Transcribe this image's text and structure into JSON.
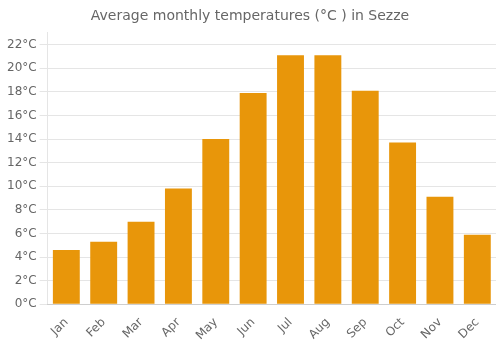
{
  "chart_data": {
    "type": "bar",
    "title": "Average monthly temperatures (°C ) in Sezze",
    "categories": [
      "Jan",
      "Feb",
      "Mar",
      "Apr",
      "May",
      "Jun",
      "Jul",
      "Aug",
      "Sep",
      "Oct",
      "Nov",
      "Dec"
    ],
    "values": [
      4.6,
      5.3,
      7.0,
      9.8,
      14.0,
      17.9,
      21.1,
      21.1,
      18.1,
      13.7,
      9.1,
      5.9
    ],
    "color": "#E8960A",
    "ylim": [
      0,
      23
    ],
    "yticks": [
      {
        "value": 0,
        "label": "0°C"
      },
      {
        "value": 2,
        "label": "2°C"
      },
      {
        "value": 4,
        "label": "4°C"
      },
      {
        "value": 6,
        "label": "6°C"
      },
      {
        "value": 8,
        "label": "8°C"
      },
      {
        "value": 10,
        "label": "10°C"
      },
      {
        "value": 12,
        "label": "12°C"
      },
      {
        "value": 14,
        "label": "14°C"
      },
      {
        "value": 16,
        "label": "16°C"
      },
      {
        "value": 18,
        "label": "18°C"
      },
      {
        "value": 20,
        "label": "20°C"
      },
      {
        "value": 22,
        "label": "22°C"
      }
    ],
    "grid": true
  }
}
